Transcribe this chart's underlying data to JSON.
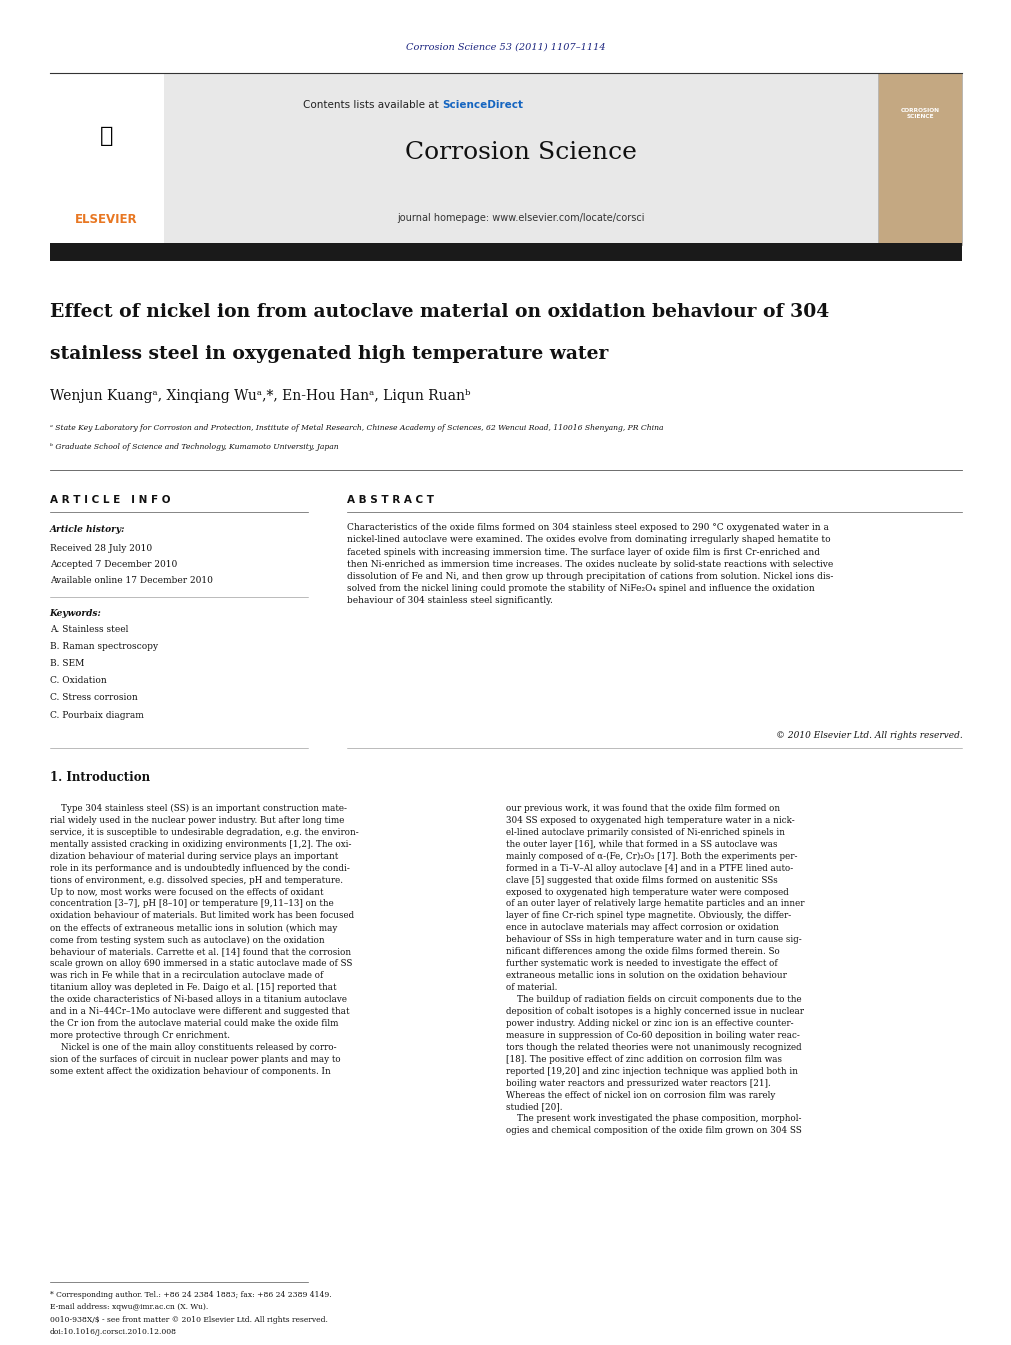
{
  "page_width": 9.92,
  "page_height": 13.23,
  "bg_color": "#ffffff",
  "top_citation": "Corrosion Science 53 (2011) 1107–1114",
  "top_citation_color": "#1a237e",
  "header_bg": "#e8e8e8",
  "contents_text": "Contents lists available at ",
  "sciencedirect_text": "ScienceDirect",
  "sciencedirect_color": "#1565c0",
  "journal_name": "Corrosion Science",
  "journal_homepage": "journal homepage: www.elsevier.com/locate/corsci",
  "thick_bar_color": "#1a1a1a",
  "article_title_line1": "Effect of nickel ion from autoclave material on oxidation behaviour of 304",
  "article_title_line2": "stainless steel in oxygenated high temperature water",
  "author_names": [
    "Wenjun Kuang",
    "Xinqiang Wu",
    "En-Hou Han",
    "Liqun Ruan"
  ],
  "affiliation_a": "ᵃ State Key Laboratory for Corrosion and Protection, Institute of Metal Research, Chinese Academy of Sciences, 62 Wencui Road, 110016 Shenyang, PR China",
  "affiliation_b": "ᵇ Graduate School of Science and Technology, Kumamoto University, Japan",
  "article_info_title": "A R T I C L E   I N F O",
  "abstract_title": "A B S T R A C T",
  "article_history_title": "Article history:",
  "received": "Received 28 July 2010",
  "accepted": "Accepted 7 December 2010",
  "available": "Available online 17 December 2010",
  "keywords_title": "Keywords:",
  "keywords": [
    "A. Stainless steel",
    "B. Raman spectroscopy",
    "B. SEM",
    "C. Oxidation",
    "C. Stress corrosion",
    "C. Pourbaix diagram"
  ],
  "abstract_text": "Characteristics of the oxide films formed on 304 stainless steel exposed to 290 °C oxygenated water in a nickel-lined autoclave were examined. The oxides evolve from dominating irregularly shaped hematite to faceted spinels with increasing immersion time. The surface layer of oxide film is first Cr-enriched and then Ni-enriched as immersion time increases. The oxides nucleate by solid-state reactions with selective dissolution of Fe and Ni, and then grow up through precipitation of cations from solution. Nickel ions dissolved from the nickel lining could promote the stability of NiFe₂O₄ spinel and influence the oxidation behaviour of 304 stainless steel significantly.",
  "copyright": "© 2010 Elsevier Ltd. All rights reserved.",
  "section1_title": "1. Introduction",
  "footer_note": "* Corresponding author. Tel.: +86 24 2384 1883; fax: +86 24 2389 4149.",
  "footer_email": "E-mail address: xqwu@imr.ac.cn (X. Wu).",
  "footer_issn": "0010-938X/$ - see front matter © 2010 Elsevier Ltd. All rights reserved.",
  "footer_doi": "doi:10.1016/j.corsci.2010.12.008",
  "elsevier_color": "#e87722",
  "header_border_color": "#000000",
  "intro_col1": "    Type 304 stainless steel (SS) is an important construction mate-\nrial widely used in the nuclear power industry. But after long time\nservice, it is susceptible to undesirable degradation, e.g. the environ-\nmentally assisted cracking in oxidizing environments [1,2]. The oxi-\ndization behaviour of material during service plays an important\nrole in its performance and is undoubtedly influenced by the condi-\ntions of environment, e.g. dissolved species, pH and temperature.\nUp to now, most works were focused on the effects of oxidant\nconcentration [3–7], pH [8–10] or temperature [9,11–13] on the\noxidation behaviour of materials. But limited work has been focused\non the effects of extraneous metallic ions in solution (which may\ncome from testing system such as autoclave) on the oxidation\nbehaviour of materials. Carrette et al. [14] found that the corrosion\nscale grown on alloy 690 immersed in a static autoclave made of SS\nwas rich in Fe while that in a recirculation autoclave made of\ntitanium alloy was depleted in Fe. Daigo et al. [15] reported that\nthe oxide characteristics of Ni-based alloys in a titanium autoclave\nand in a Ni–44Cr–1Mo autoclave were different and suggested that\nthe Cr ion from the autoclave material could make the oxide film\nmore protective through Cr enrichment.\n    Nickel is one of the main alloy constituents released by corro-\nsion of the surfaces of circuit in nuclear power plants and may to\nsome extent affect the oxidization behaviour of components. In",
  "intro_col2": "our previous work, it was found that the oxide film formed on\n304 SS exposed to oxygenated high temperature water in a nick-\nel-lined autoclave primarily consisted of Ni-enriched spinels in\nthe outer layer [16], while that formed in a SS autoclave was\nmainly composed of α-(Fe, Cr)₂O₃ [17]. Both the experiments per-\nformed in a Ti–V–Al alloy autoclave [4] and in a PTFE lined auto-\nclave [5] suggested that oxide films formed on austenitic SSs\nexposed to oxygenated high temperature water were composed\nof an outer layer of relatively large hematite particles and an inner\nlayer of fine Cr-rich spinel type magnetite. Obviously, the differ-\nence in autoclave materials may affect corrosion or oxidation\nbehaviour of SSs in high temperature water and in turn cause sig-\nnificant differences among the oxide films formed therein. So\nfurther systematic work is needed to investigate the effect of\nextraneous metallic ions in solution on the oxidation behaviour\nof material.\n    The buildup of radiation fields on circuit components due to the\ndeposition of cobalt isotopes is a highly concerned issue in nuclear\npower industry. Adding nickel or zinc ion is an effective counter-\nmeasure in suppression of Co-60 deposition in boiling water reac-\ntors though the related theories were not unanimously recognized\n[18]. The positive effect of zinc addition on corrosion film was\nreported [19,20] and zinc injection technique was applied both in\nboiling water reactors and pressurized water reactors [21].\nWhereas the effect of nickel ion on corrosion film was rarely\nstudied [20].\n    The present work investigated the phase composition, morphol-\nogies and chemical composition of the oxide film grown on 304 SS"
}
